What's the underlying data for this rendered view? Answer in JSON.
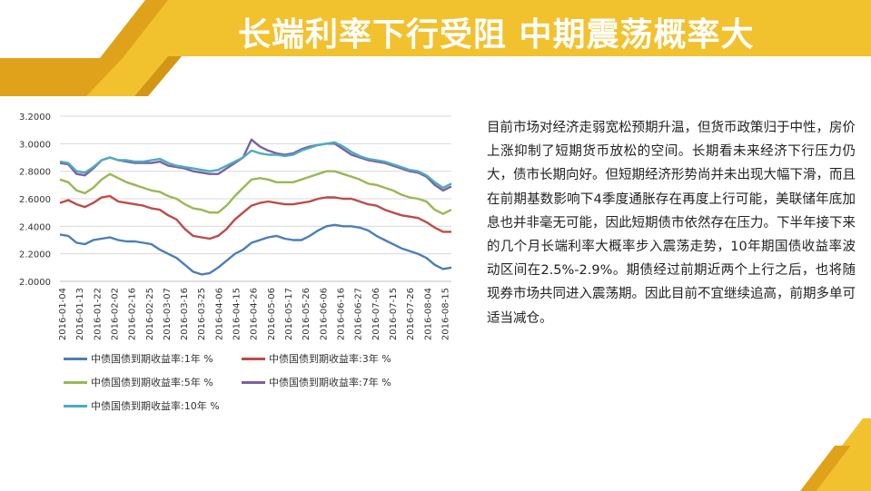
{
  "title": "长端利率下行受阻 中期震荡概率大",
  "body_text": "目前市场对经济走弱宽松预期升温，但货币政策归于中性，房价上涨抑制了短期货币放松的空间。长期看未来经济下行压力仍大，债市长期向好。但短期经济形势尚并未出现大幅下滑，而且在前期基数影响下4季度通胀存在再度上行可能，美联储年底加息也并非毫无可能，因此短期债市依然存在压力。下半年接下来的几个月长端利率大概率步入震荡走势，10年期国债收益率波动区间在2.5%-2.9%。期债经过前期近两个上行之后，也将随现券市场共同进入震荡期。因此目前不宜继续追高，前期多单可适当减仓。",
  "colors": {
    "banner_yellow": "#F2C12E",
    "banner_orange": "#E0A21A",
    "banner_dark": "#C98A10"
  },
  "chart_data": {
    "type": "line",
    "x_tick_labels": [
      "2016-01-04",
      "2016-01-13",
      "2016-01-22",
      "2016-02-02",
      "2016-02-16",
      "2016-02-25",
      "2016-03-07",
      "2016-03-16",
      "2016-03-25",
      "2016-04-06",
      "2016-04-15",
      "2016-04-26",
      "2016-05-06",
      "2016-05-17",
      "2016-05-26",
      "2016-06-06",
      "2016-06-16",
      "2016-06-27",
      "2016-07-06",
      "2016-07-15",
      "2016-07-26",
      "2016-08-04",
      "2016-08-15"
    ],
    "y_tick_labels": [
      "2.0000",
      "2.2000",
      "2.4000",
      "2.6000",
      "2.8000",
      "3.0000",
      "3.2000"
    ],
    "ylim": [
      2.0,
      3.2
    ],
    "grid": true,
    "legend_position": "bottom",
    "series": [
      {
        "name": "中债国债到期收益率:1年 %",
        "color": "#4A7EBB",
        "values": [
          2.34,
          2.33,
          2.28,
          2.27,
          2.3,
          2.31,
          2.32,
          2.3,
          2.29,
          2.29,
          2.28,
          2.27,
          2.23,
          2.2,
          2.17,
          2.12,
          2.07,
          2.05,
          2.06,
          2.1,
          2.15,
          2.2,
          2.23,
          2.28,
          2.3,
          2.32,
          2.33,
          2.31,
          2.3,
          2.3,
          2.33,
          2.37,
          2.4,
          2.41,
          2.4,
          2.4,
          2.39,
          2.37,
          2.33,
          2.3,
          2.27,
          2.24,
          2.22,
          2.2,
          2.17,
          2.12,
          2.09,
          2.1
        ]
      },
      {
        "name": "中债国债到期收益率:3年 %",
        "color": "#BE4B48",
        "values": [
          2.57,
          2.59,
          2.56,
          2.54,
          2.57,
          2.61,
          2.62,
          2.58,
          2.57,
          2.56,
          2.55,
          2.53,
          2.52,
          2.48,
          2.45,
          2.38,
          2.33,
          2.32,
          2.31,
          2.33,
          2.38,
          2.45,
          2.5,
          2.55,
          2.57,
          2.58,
          2.57,
          2.56,
          2.56,
          2.57,
          2.58,
          2.6,
          2.61,
          2.61,
          2.6,
          2.6,
          2.58,
          2.56,
          2.55,
          2.52,
          2.5,
          2.48,
          2.47,
          2.46,
          2.43,
          2.39,
          2.36,
          2.36
        ]
      },
      {
        "name": "中债国债到期收益率:5年 %",
        "color": "#98B954",
        "values": [
          2.74,
          2.72,
          2.66,
          2.64,
          2.68,
          2.74,
          2.78,
          2.75,
          2.72,
          2.7,
          2.68,
          2.66,
          2.65,
          2.62,
          2.6,
          2.56,
          2.53,
          2.52,
          2.5,
          2.5,
          2.55,
          2.62,
          2.68,
          2.74,
          2.75,
          2.74,
          2.72,
          2.72,
          2.72,
          2.74,
          2.76,
          2.78,
          2.8,
          2.8,
          2.78,
          2.76,
          2.74,
          2.71,
          2.7,
          2.68,
          2.66,
          2.63,
          2.61,
          2.6,
          2.58,
          2.52,
          2.49,
          2.52
        ]
      },
      {
        "name": "中债国债到期收益率:7年 %",
        "color": "#7D60A0",
        "values": [
          2.86,
          2.85,
          2.78,
          2.77,
          2.82,
          2.88,
          2.9,
          2.88,
          2.87,
          2.86,
          2.86,
          2.86,
          2.87,
          2.84,
          2.83,
          2.82,
          2.8,
          2.79,
          2.78,
          2.78,
          2.82,
          2.86,
          2.9,
          3.03,
          2.98,
          2.95,
          2.93,
          2.92,
          2.93,
          2.96,
          2.98,
          2.99,
          3.0,
          3.0,
          2.96,
          2.92,
          2.9,
          2.88,
          2.87,
          2.86,
          2.84,
          2.82,
          2.8,
          2.79,
          2.76,
          2.7,
          2.66,
          2.69
        ]
      },
      {
        "name": "中债国债到期收益率:10年 %",
        "color": "#4BACC6",
        "values": [
          2.87,
          2.86,
          2.8,
          2.79,
          2.83,
          2.88,
          2.9,
          2.88,
          2.88,
          2.87,
          2.87,
          2.88,
          2.89,
          2.86,
          2.84,
          2.83,
          2.82,
          2.81,
          2.8,
          2.81,
          2.84,
          2.87,
          2.9,
          2.95,
          2.93,
          2.92,
          2.92,
          2.91,
          2.92,
          2.95,
          2.97,
          2.99,
          3.0,
          3.01,
          2.98,
          2.94,
          2.91,
          2.89,
          2.88,
          2.87,
          2.85,
          2.83,
          2.81,
          2.8,
          2.77,
          2.72,
          2.68,
          2.71
        ]
      }
    ]
  }
}
